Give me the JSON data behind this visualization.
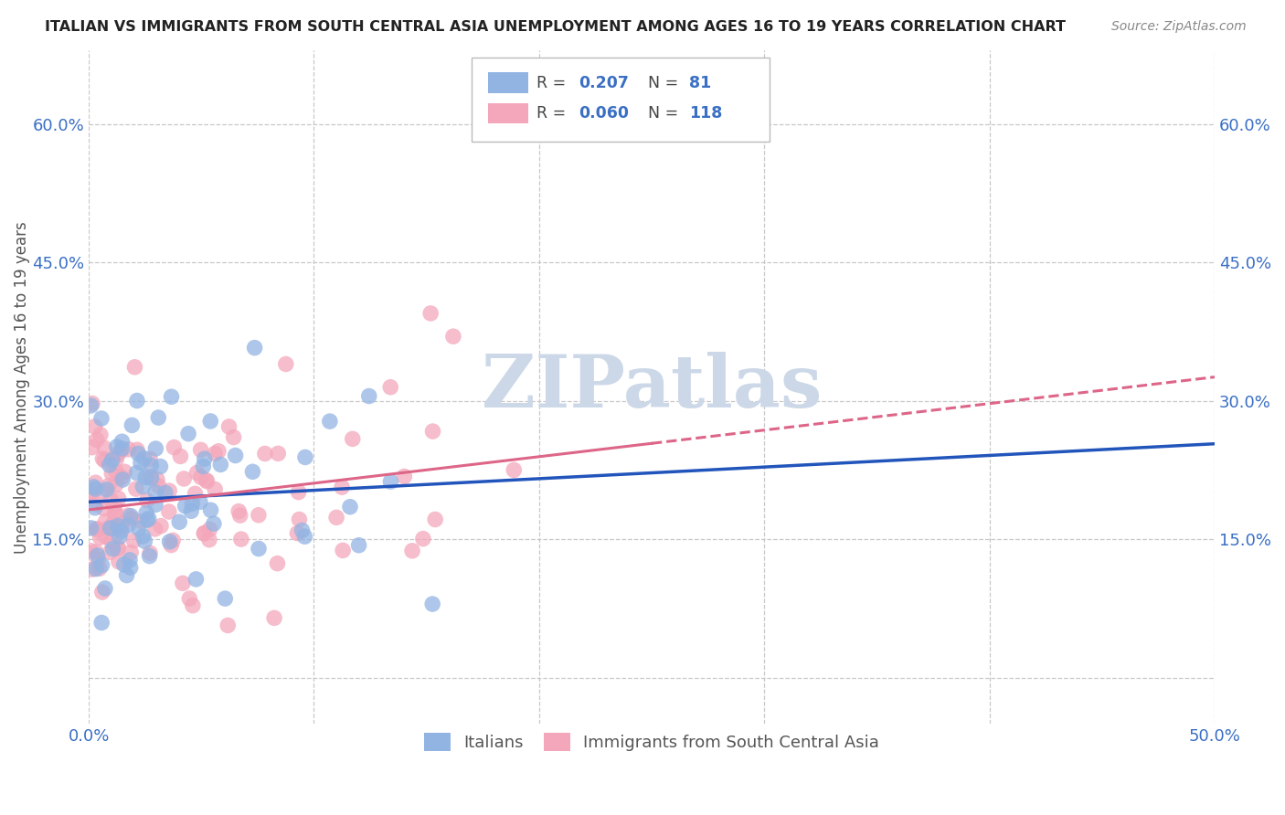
{
  "title": "ITALIAN VS IMMIGRANTS FROM SOUTH CENTRAL ASIA UNEMPLOYMENT AMONG AGES 16 TO 19 YEARS CORRELATION CHART",
  "source": "Source: ZipAtlas.com",
  "ylabel": "Unemployment Among Ages 16 to 19 years",
  "xlim": [
    0.0,
    0.5
  ],
  "ylim": [
    -0.05,
    0.68
  ],
  "xticks": [
    0.0,
    0.1,
    0.2,
    0.3,
    0.4,
    0.5
  ],
  "xticklabels": [
    "0.0%",
    "",
    "",
    "",
    "",
    "50.0%"
  ],
  "yticks": [
    0.0,
    0.15,
    0.3,
    0.45,
    0.6
  ],
  "yticklabels_left": [
    "",
    "15.0%",
    "30.0%",
    "45.0%",
    "60.0%"
  ],
  "yticklabels_right": [
    "",
    "15.0%",
    "30.0%",
    "45.0%",
    "60.0%"
  ],
  "legend_labels": [
    "Italians",
    "Immigrants from South Central Asia"
  ],
  "R_italian": 0.207,
  "N_italian": 81,
  "R_immigrant": 0.06,
  "N_immigrant": 118,
  "italian_color": "#92b4e3",
  "immigrant_color": "#f4a7bb",
  "italian_line_color": "#2255bb",
  "immigrant_line_color": "#dd6688",
  "background_color": "#ffffff",
  "grid_color": "#c8c8c8",
  "watermark_color": "#ccd8e8",
  "title_color": "#222222",
  "axis_label_color": "#555555",
  "tick_label_color": "#3a6fc4",
  "source_color": "#888888"
}
